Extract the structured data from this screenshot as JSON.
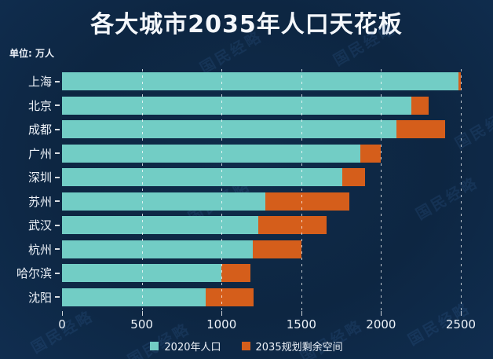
{
  "title": "各大城市2035年人口天花板",
  "unit_label": "单位: 万人",
  "watermark_text": "国民经略",
  "colors": {
    "background": "#0d2642",
    "series_2020": "#72cdc5",
    "series_remaining": "#d55e1b",
    "text": "#eef3f9",
    "gridline": "rgba(255,255,255,0.75)",
    "watermark": "#4b7fc0"
  },
  "chart_data": {
    "type": "bar",
    "orientation": "horizontal",
    "stacked": true,
    "title": "各大城市2035年人口天花板",
    "unit": "万人",
    "categories": [
      "上海",
      "北京",
      "成都",
      "广州",
      "深圳",
      "苏州",
      "武汉",
      "杭州",
      "哈尔滨",
      "沈阳"
    ],
    "series": [
      {
        "name": "2020年人口",
        "color": "#72cdc5",
        "values": [
          2487,
          2189,
          2094,
          1868,
          1756,
          1275,
          1232,
          1194,
          1001,
          902
        ]
      },
      {
        "name": "2035规划剩余空间",
        "color": "#d55e1b",
        "values": [
          13,
          111,
          306,
          132,
          144,
          525,
          428,
          306,
          179,
          298
        ]
      }
    ],
    "totals_2035_ceiling": [
      2500,
      2300,
      2400,
      2000,
      1900,
      1800,
      1660,
      1500,
      1180,
      1200
    ],
    "x_ticks": [
      0,
      500,
      1000,
      1500,
      2000,
      2500
    ],
    "xlim": [
      0,
      2500
    ],
    "grid": true,
    "legend_position": "bottom"
  }
}
